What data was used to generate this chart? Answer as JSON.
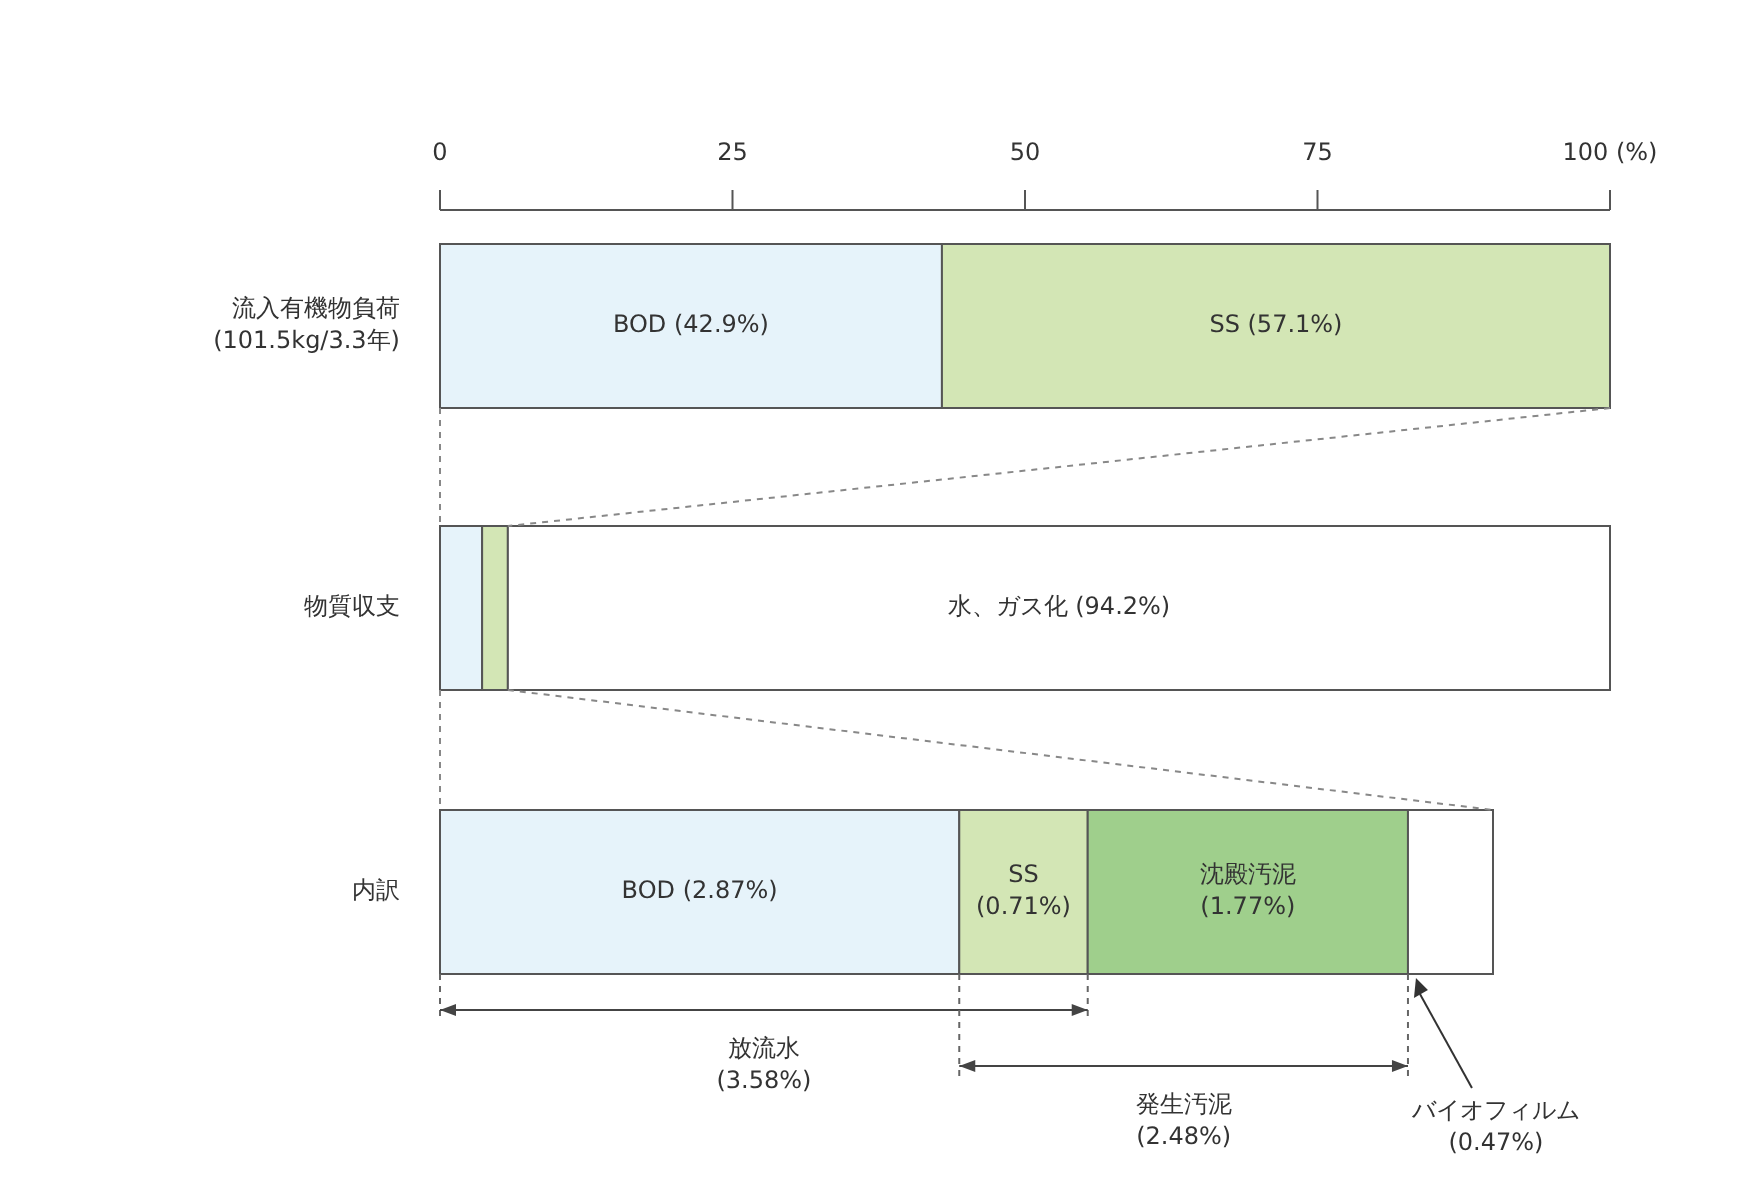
{
  "chart_data": [
    {
      "type": "bar",
      "orientation": "horizontal",
      "stacked": true,
      "categories": [
        "流入有機物負荷\n(101.5kg/3.3年)",
        "物質収支"
      ],
      "series": [
        {
          "color": "#e6f3fa",
          "values": [
            42.9,
            3.6
          ],
          "value_labels": [
            "BOD (42.9%)",
            null
          ]
        },
        {
          "color": "#d3e6b5",
          "values": [
            57.1,
            2.2
          ],
          "value_labels": [
            "SS (57.1%)",
            null
          ]
        },
        {
          "color": "#ffffff",
          "values": [
            null,
            94.2
          ],
          "value_labels": [
            null,
            "水、ガス化 (94.2%)"
          ]
        }
      ],
      "xlim": [
        0,
        100
      ],
      "xticks": [
        0,
        25,
        50,
        75,
        {
          "value": 100,
          "label": "100 (%)"
        }
      ],
      "grid": false
    },
    {
      "type": "bar",
      "orientation": "horizontal",
      "stacked": true,
      "categories": [
        "内訳"
      ],
      "series": [
        {
          "color": "#e6f3fa",
          "values": [
            2.87
          ],
          "value_labels": [
            "BOD (2.87%)"
          ]
        },
        {
          "color": "#d3e6b5",
          "values": [
            0.71
          ],
          "value_labels": [
            "SS\n(0.71%)"
          ]
        },
        {
          "color": "#9fcf8c",
          "values": [
            1.77
          ],
          "value_labels": [
            "沈殿汚泥\n(1.77%)"
          ]
        },
        {
          "color": "#ffffff",
          "values": [
            0.47
          ],
          "value_labels": [
            null
          ]
        }
      ],
      "annotations": [
        "放流水\n(3.58%)",
        "発生汚泥\n(2.48%)",
        "バイオフィルム\n(0.47%)"
      ]
    }
  ]
}
